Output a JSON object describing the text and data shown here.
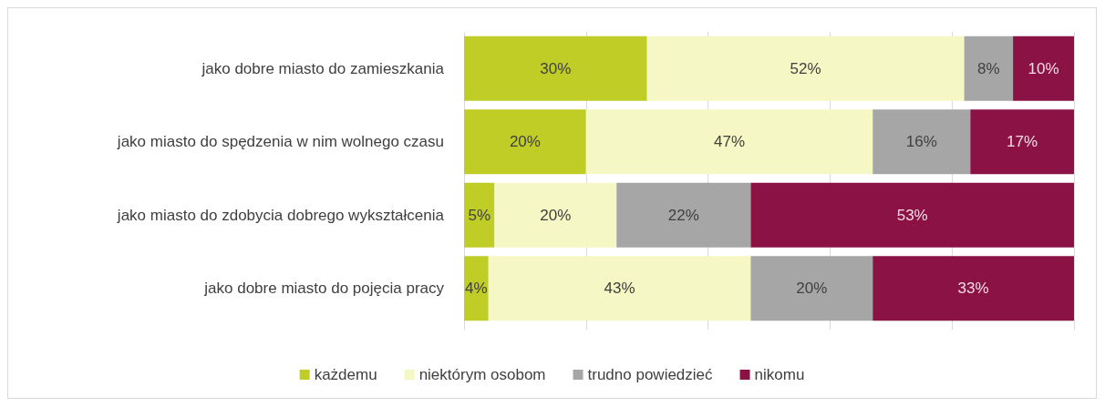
{
  "chart_data": {
    "type": "bar",
    "orientation": "horizontal",
    "stacked": true,
    "grid": "x",
    "legend": "bottom",
    "tick_labels": "y",
    "categories": [
      "jako dobre miasto do zamieszkania",
      "jako miasto do spędzenia w nim wolnego czasu",
      "jako miasto do zdobycia dobrego wykształcenia",
      "jako dobre miasto do pojęcia pracy"
    ],
    "series": [
      {
        "name": "każdemu",
        "color": "#c0cd27",
        "values": [
          30,
          20,
          5,
          4
        ],
        "value_labels": [
          "30%",
          "20%",
          "5%",
          "4%"
        ]
      },
      {
        "name": "niektórym osobom",
        "color": "#f5f7c4",
        "values": [
          52,
          47,
          20,
          43
        ],
        "value_labels": [
          "52%",
          "47%",
          "20%",
          "43%"
        ]
      },
      {
        "name": "trudno powiedzieć",
        "color": "#a6a6a6",
        "values": [
          8,
          16,
          22,
          20
        ],
        "value_labels": [
          "8%",
          "16%",
          "22%",
          "20%"
        ]
      },
      {
        "name": "nikomu",
        "color": "#8b1244",
        "values": [
          10,
          17,
          53,
          33
        ],
        "value_labels": [
          "10%",
          "17%",
          "53%",
          "33%"
        ]
      }
    ]
  }
}
